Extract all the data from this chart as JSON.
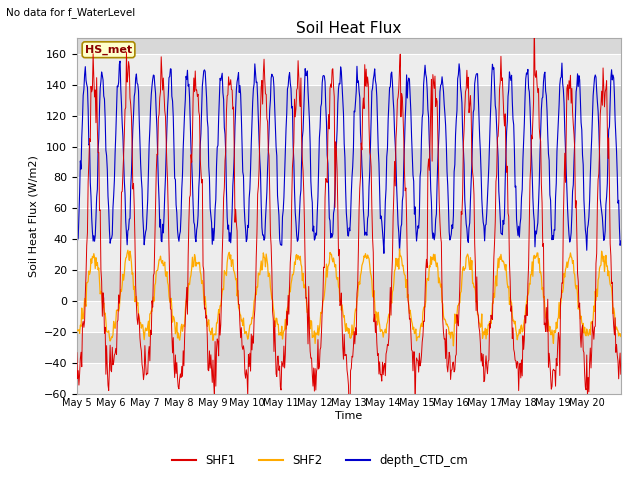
{
  "title": "Soil Heat Flux",
  "ylabel": "Soil Heat Flux (W/m2)",
  "xlabel": "Time",
  "top_left_text": "No data for f_WaterLevel",
  "annotation_box": "HS_met",
  "ylim": [
    -60,
    170
  ],
  "yticks": [
    -60,
    -40,
    -20,
    0,
    20,
    40,
    60,
    80,
    100,
    120,
    140,
    160
  ],
  "legend": [
    {
      "label": "SHF1",
      "color": "#dd0000"
    },
    {
      "label": "SHF2",
      "color": "#ffaa00"
    },
    {
      "label": "depth_CTD_cm",
      "color": "#0000cc"
    }
  ],
  "background_color": "#ffffff",
  "plot_bg_color": "#d8d8d8",
  "grid_color": "#eeeeee",
  "n_days": 16,
  "start_day": 5,
  "shf1_day_peak": 145,
  "shf1_night_min": -47,
  "shf2_day_peak": 28,
  "shf2_night_min": -22,
  "ctd_day_peak": 148,
  "ctd_night_min": 40,
  "points_per_day": 48
}
